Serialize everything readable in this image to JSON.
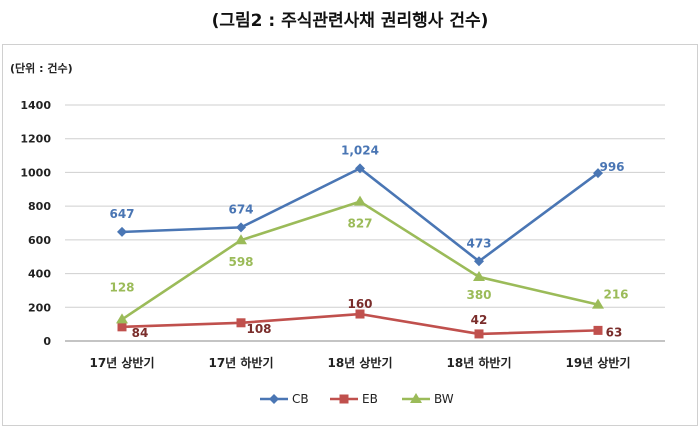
{
  "chart_data": {
    "type": "line",
    "title": "(그림2 : 주식관련사채 권리행사 건수)",
    "unit_label": "(단위 : 건수)",
    "categories": [
      "17년 상반기",
      "17년 하반기",
      "18년 상반기",
      "18년 하반기",
      "19년 상반기"
    ],
    "ylim": [
      0,
      1400
    ],
    "yticks": [
      "0",
      "200",
      "400",
      "600",
      "800",
      "1000",
      "1200",
      "1400"
    ],
    "grid": true,
    "legend_position": "bottom",
    "series": [
      {
        "name": "CB",
        "color": "#4a76b4",
        "marker": "diamond",
        "values": [
          647,
          674,
          1024,
          473,
          996
        ],
        "labels": [
          "647",
          "674",
          "1,024",
          "473",
          "996"
        ]
      },
      {
        "name": "EB",
        "color": "#c0504d",
        "marker": "square",
        "values": [
          84,
          108,
          160,
          42,
          63
        ],
        "labels": [
          "84",
          "108",
          "160",
          "42",
          "63"
        ]
      },
      {
        "name": "BW",
        "color": "#9bbb59",
        "marker": "triangle",
        "values": [
          128,
          598,
          827,
          380,
          216
        ],
        "labels": [
          "128",
          "598",
          "827",
          "380",
          "216"
        ]
      }
    ]
  }
}
